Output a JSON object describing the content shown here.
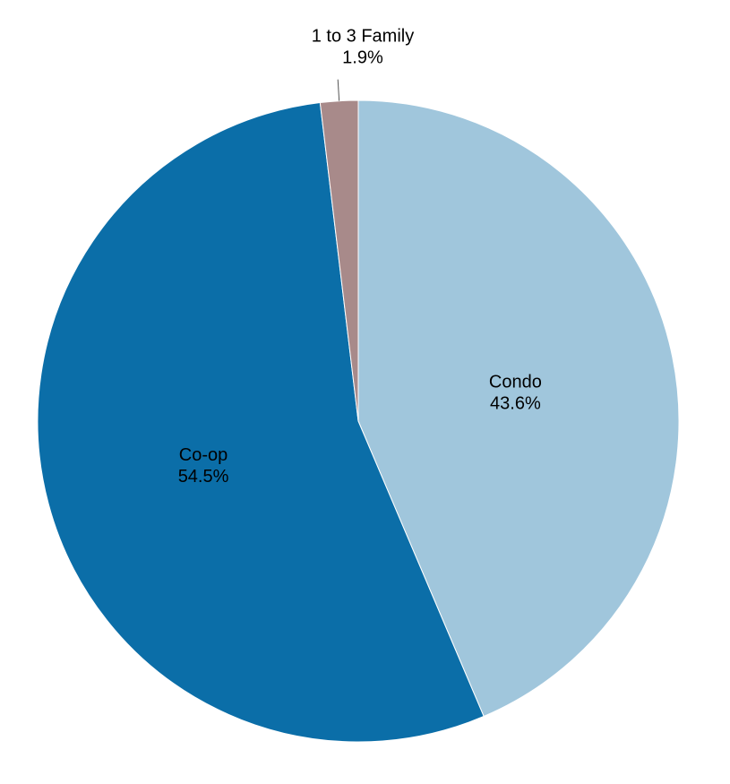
{
  "chart_data": {
    "type": "pie",
    "categories": [
      "Condo",
      "Co-op",
      "1 to 3 Family"
    ],
    "values": [
      43.6,
      54.5,
      1.9
    ],
    "value_labels": [
      "43.6%",
      "54.5%",
      "1.9%"
    ],
    "colors": [
      "#a0c6dc",
      "#0b6ea8",
      "#a88a8a"
    ]
  }
}
